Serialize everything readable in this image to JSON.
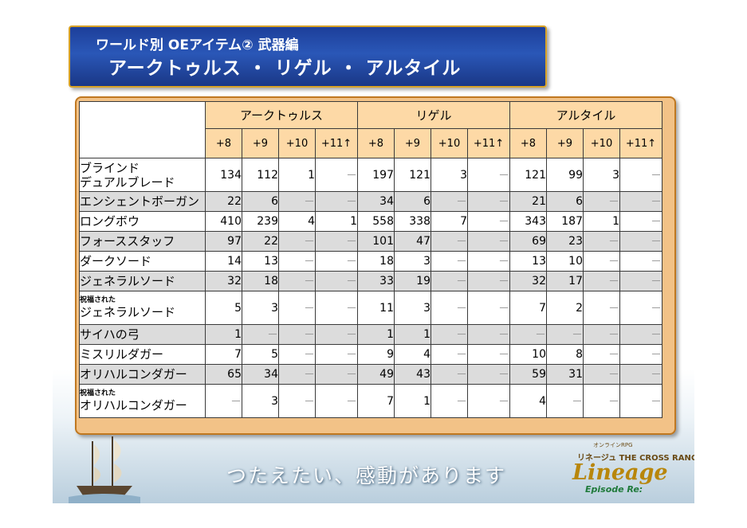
{
  "header": {
    "subtitle": "ワールド別 OEアイテム② 武器編",
    "title": "アークトゥルス ・ リゲル ・ アルタイル"
  },
  "table": {
    "worlds": [
      "アークトゥルス",
      "リゲル",
      "アルタイル"
    ],
    "enhance_levels": [
      "+8",
      "+9",
      "+10",
      "+11↑"
    ],
    "dash": "－",
    "rows": [
      {
        "prefix": "",
        "name_lines": [
          "ブラインド",
          "デュアルブレード"
        ],
        "values": [
          "134",
          "112",
          "1",
          "－",
          "197",
          "121",
          "3",
          "－",
          "121",
          "99",
          "3",
          "－"
        ]
      },
      {
        "prefix": "",
        "name_lines": [
          "エンシェントボーガン"
        ],
        "values": [
          "22",
          "6",
          "－",
          "－",
          "34",
          "6",
          "－",
          "－",
          "21",
          "6",
          "－",
          "－"
        ]
      },
      {
        "prefix": "",
        "name_lines": [
          "ロングボウ"
        ],
        "values": [
          "410",
          "239",
          "4",
          "1",
          "558",
          "338",
          "7",
          "－",
          "343",
          "187",
          "1",
          "－"
        ]
      },
      {
        "prefix": "",
        "name_lines": [
          "フォーススタッフ"
        ],
        "values": [
          "97",
          "22",
          "－",
          "－",
          "101",
          "47",
          "－",
          "－",
          "69",
          "23",
          "－",
          "－"
        ]
      },
      {
        "prefix": "",
        "name_lines": [
          "ダークソード"
        ],
        "values": [
          "14",
          "13",
          "－",
          "－",
          "18",
          "3",
          "－",
          "－",
          "13",
          "10",
          "－",
          "－"
        ]
      },
      {
        "prefix": "",
        "name_lines": [
          "ジェネラルソード"
        ],
        "values": [
          "32",
          "18",
          "－",
          "－",
          "33",
          "19",
          "－",
          "－",
          "32",
          "17",
          "－",
          "－"
        ]
      },
      {
        "prefix": "祝福された",
        "name_lines": [
          "ジェネラルソード"
        ],
        "values": [
          "5",
          "3",
          "－",
          "－",
          "11",
          "3",
          "－",
          "－",
          "7",
          "2",
          "－",
          "－"
        ]
      },
      {
        "prefix": "",
        "name_lines": [
          "サイハの弓"
        ],
        "values": [
          "1",
          "－",
          "－",
          "－",
          "1",
          "1",
          "－",
          "－",
          "－",
          "－",
          "－",
          "－"
        ]
      },
      {
        "prefix": "",
        "name_lines": [
          "ミスリルダガー"
        ],
        "values": [
          "7",
          "5",
          "－",
          "－",
          "9",
          "4",
          "－",
          "－",
          "10",
          "8",
          "－",
          "－"
        ]
      },
      {
        "prefix": "",
        "name_lines": [
          "オリハルコンダガー"
        ],
        "values": [
          "65",
          "34",
          "－",
          "－",
          "49",
          "43",
          "－",
          "－",
          "59",
          "31",
          "－",
          "－"
        ]
      },
      {
        "prefix": "祝福された",
        "name_lines": [
          "オリハルコンダガー"
        ],
        "values": [
          "－",
          "3",
          "－",
          "－",
          "7",
          "1",
          "－",
          "－",
          "4",
          "－",
          "－",
          "－"
        ]
      }
    ]
  },
  "footer": {
    "slogan": "つたえたい、感動があります",
    "logo_top": "オンラインRPG",
    "logo_mid": "リネージュ THE CROSS RANCOR",
    "logo_main": "Lineage",
    "logo_sub": "Episode Re:",
    "ship_icon": "sailing-ship-icon"
  }
}
